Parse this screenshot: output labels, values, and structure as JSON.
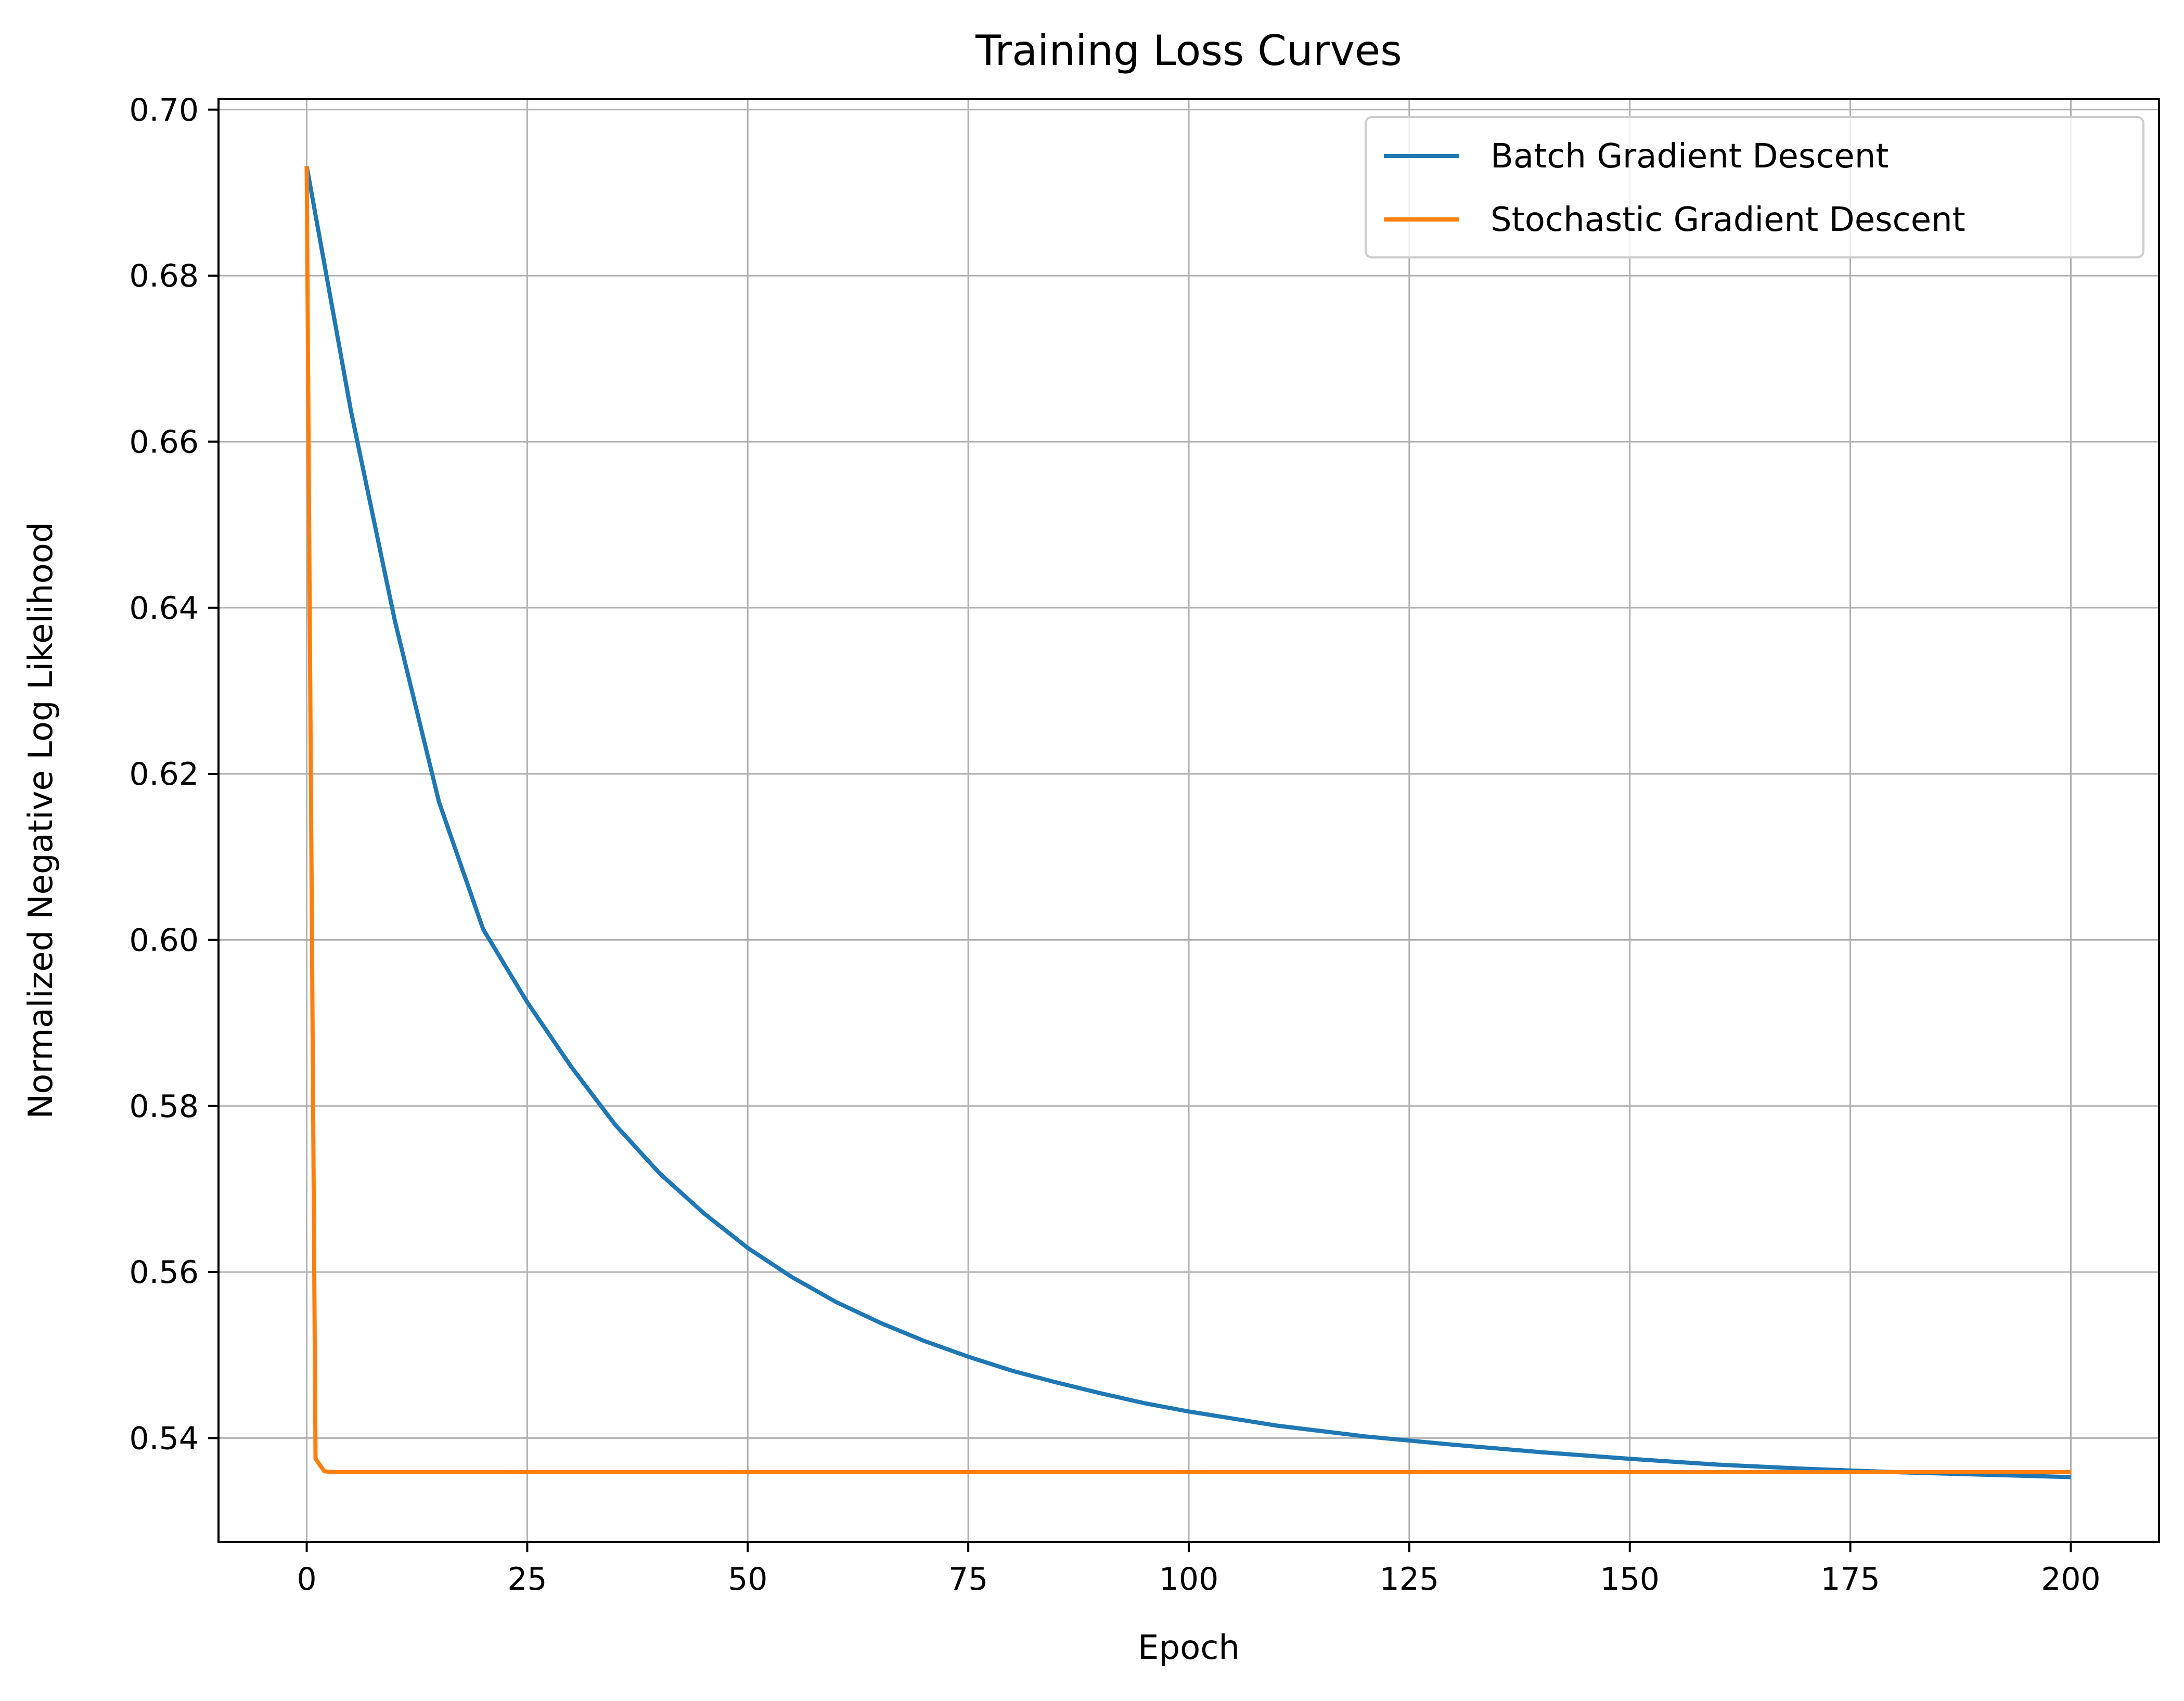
{
  "chart_data": {
    "type": "line",
    "title": "Training Loss Curves",
    "xlabel": "Epoch",
    "ylabel": "Normalized Negative Log Likelihood",
    "xlim": [
      -10,
      210
    ],
    "ylim": [
      0.5275,
      0.7013
    ],
    "grid": true,
    "legend_position": "top-right",
    "x_ticks": [
      0,
      25,
      50,
      75,
      100,
      125,
      150,
      175,
      200
    ],
    "x_tick_labels": [
      "0",
      "25",
      "50",
      "75",
      "100",
      "125",
      "150",
      "175",
      "200"
    ],
    "y_ticks": [
      0.54,
      0.56,
      0.58,
      0.6,
      0.62,
      0.64,
      0.66,
      0.68,
      0.7
    ],
    "y_tick_labels": [
      "0.54",
      "0.56",
      "0.58",
      "0.60",
      "0.62",
      "0.64",
      "0.66",
      "0.68",
      "0.70"
    ],
    "series": [
      {
        "name": "Batch Gradient Descent",
        "color": "#1f77b4",
        "x": [
          0,
          5,
          10,
          15,
          20,
          25,
          30,
          35,
          40,
          45,
          50,
          55,
          60,
          65,
          70,
          75,
          80,
          85,
          90,
          95,
          100,
          110,
          120,
          125,
          130,
          140,
          150,
          160,
          170,
          175,
          180,
          190,
          200
        ],
        "y": [
          0.6932,
          0.6638,
          0.6384,
          0.6166,
          0.6013,
          0.5925,
          0.5847,
          0.5777,
          0.5719,
          0.5671,
          0.5629,
          0.5594,
          0.5564,
          0.5539,
          0.5517,
          0.5498,
          0.5481,
          0.5467,
          0.5454,
          0.5442,
          0.5432,
          0.5415,
          0.5402,
          0.5397,
          0.5392,
          0.5383,
          0.5375,
          0.5368,
          0.5363,
          0.5361,
          0.5359,
          0.5356,
          0.5353
        ]
      },
      {
        "name": "Stochastic Gradient Descent",
        "color": "#ff7f0e",
        "x": [
          0,
          1,
          2,
          3,
          5,
          10,
          25,
          50,
          75,
          100,
          125,
          150,
          175,
          200
        ],
        "y": [
          0.6932,
          0.5375,
          0.536,
          0.5359,
          0.5359,
          0.5359,
          0.5359,
          0.5359,
          0.5359,
          0.5359,
          0.5359,
          0.5359,
          0.5359,
          0.5359
        ]
      }
    ]
  }
}
